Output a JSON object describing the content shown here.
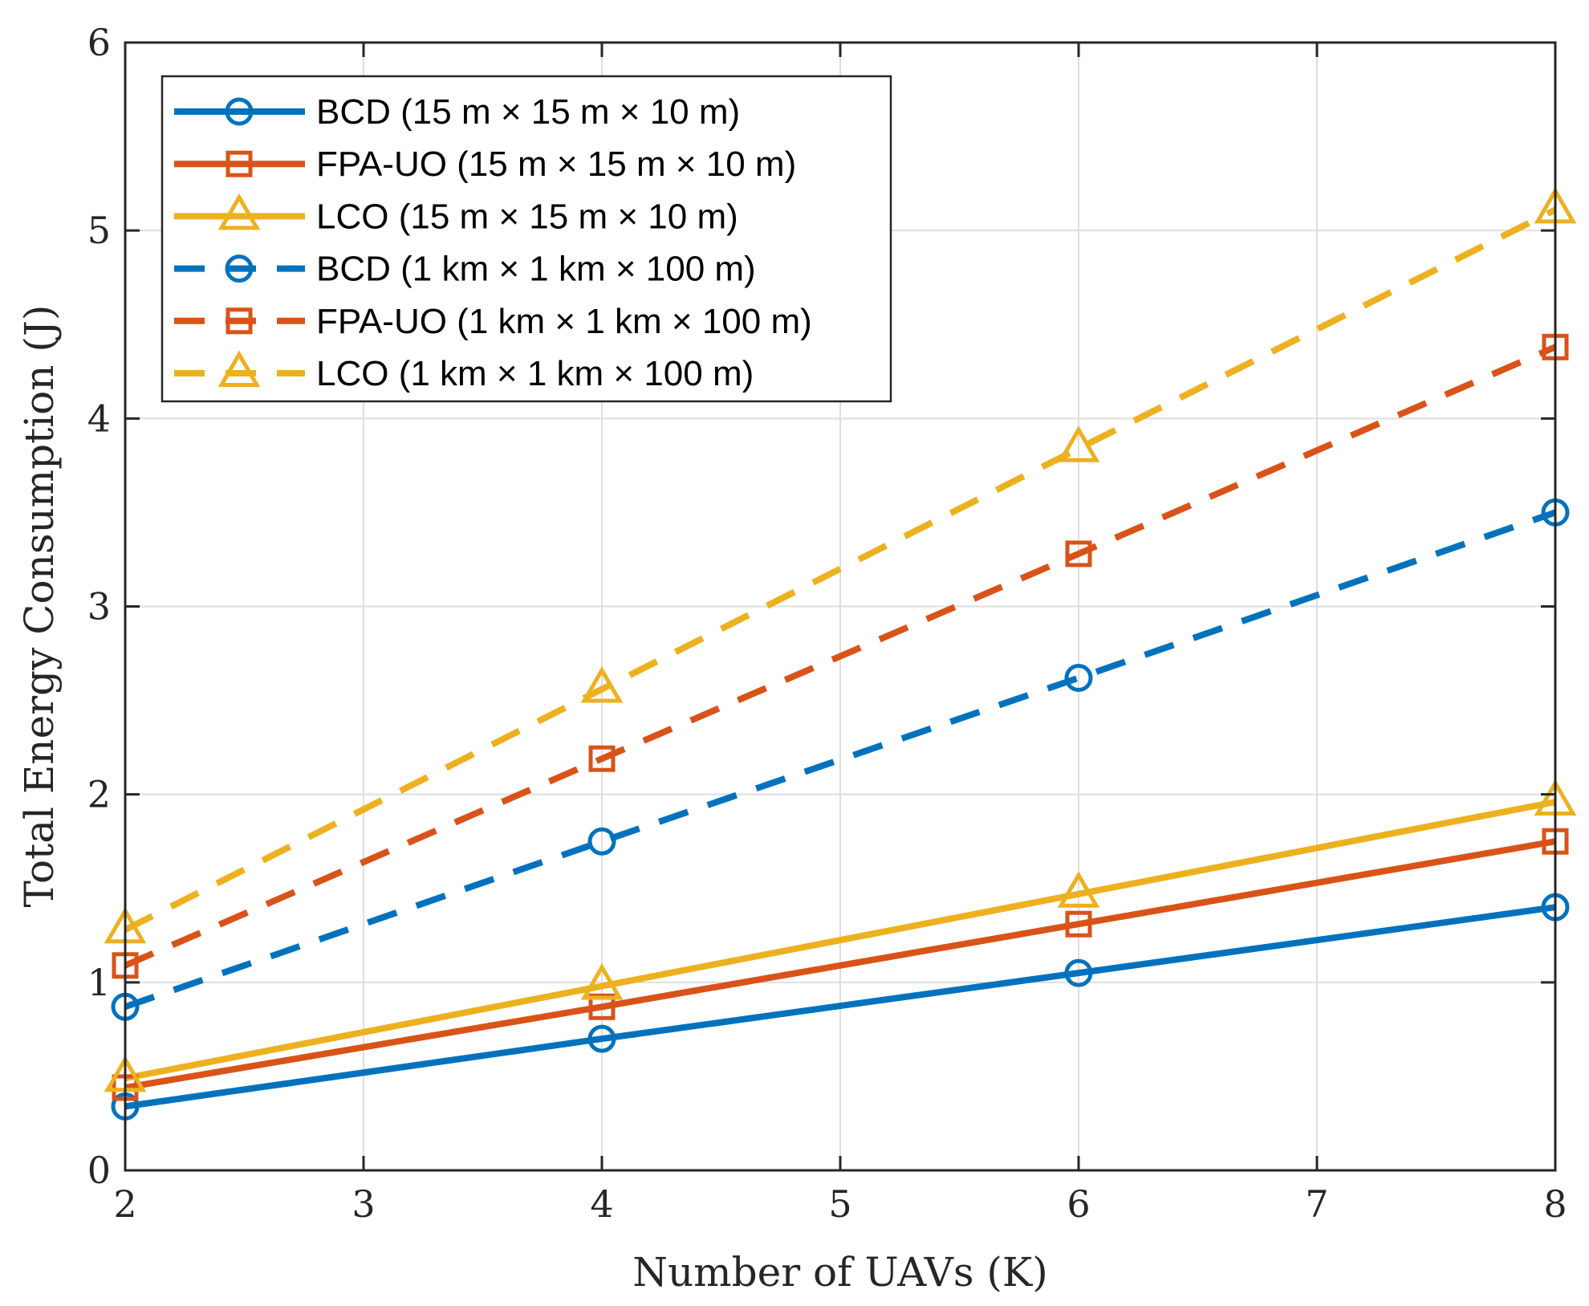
{
  "chart_data": {
    "type": "line",
    "title": "",
    "xlabel": "Number of UAVs (K)",
    "ylabel": "Total Energy Consumption (J)",
    "xlim": [
      2,
      8
    ],
    "ylim": [
      0,
      6
    ],
    "xticks": [
      "2",
      "3",
      "4",
      "5",
      "6",
      "7",
      "8"
    ],
    "yticks": [
      "0",
      "1",
      "2",
      "3",
      "4",
      "5",
      "6"
    ],
    "grid": true,
    "legend_position": "top-left",
    "x": [
      2,
      4,
      6,
      8
    ],
    "series": [
      {
        "name": "BCD (15 m × 15 m × 10 m)",
        "values": [
          0.34,
          0.7,
          1.05,
          1.4
        ],
        "color": "#0072BD",
        "marker": "circle",
        "dashed": false
      },
      {
        "name": "FPA-UO (15 m × 15 m × 10 m)",
        "values": [
          0.44,
          0.87,
          1.31,
          1.75
        ],
        "color": "#D95319",
        "marker": "square",
        "dashed": false
      },
      {
        "name": "LCO (15 m × 15 m × 10 m)",
        "values": [
          0.49,
          0.98,
          1.47,
          1.96
        ],
        "color": "#EDB120",
        "marker": "triangle",
        "dashed": false
      },
      {
        "name": "BCD (1 km × 1 km × 100 m)",
        "values": [
          0.87,
          1.75,
          2.62,
          3.5
        ],
        "color": "#0072BD",
        "marker": "circle",
        "dashed": true
      },
      {
        "name": "FPA-UO (1 km × 1 km × 100 m)",
        "values": [
          1.09,
          2.19,
          3.28,
          4.38
        ],
        "color": "#D95319",
        "marker": "square",
        "dashed": true
      },
      {
        "name": "LCO (1 km × 1 km × 100 m)",
        "values": [
          1.28,
          2.56,
          3.84,
          5.11
        ],
        "color": "#EDB120",
        "marker": "triangle",
        "dashed": true
      }
    ]
  }
}
